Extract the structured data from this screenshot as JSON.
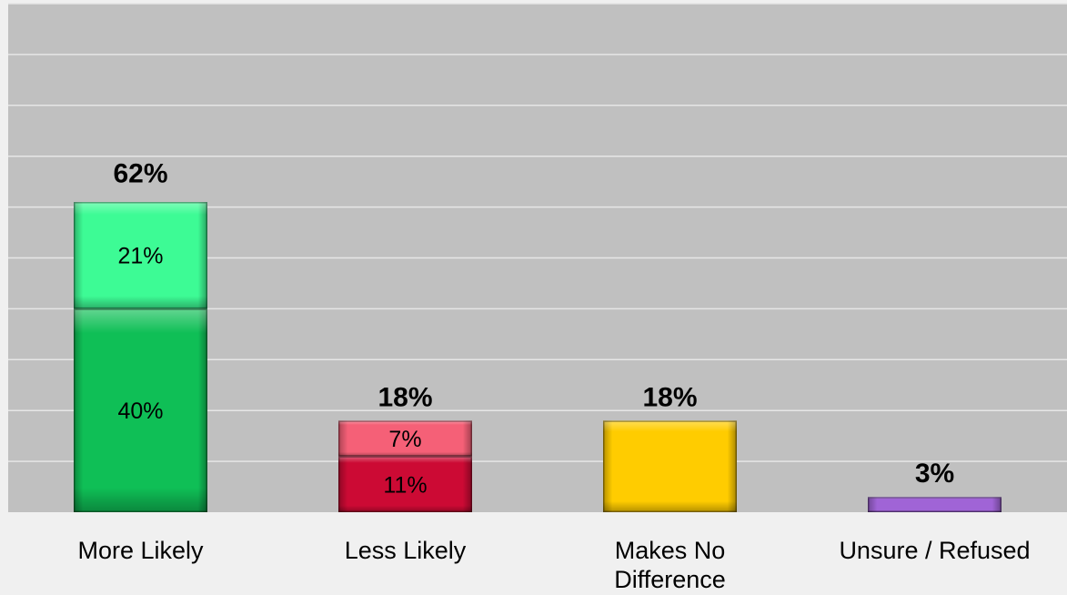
{
  "chart_data": {
    "type": "bar",
    "stacked": true,
    "categories": [
      "More Likely",
      "Less Likely",
      "Makes No Difference",
      "Unsure / Refused"
    ],
    "category_labels": [
      [
        "More Likely"
      ],
      [
        "Less Likely"
      ],
      [
        "Makes No",
        "Difference"
      ],
      [
        "Unsure / Refused"
      ]
    ],
    "totals": [
      62,
      18,
      18,
      3
    ],
    "total_labels": [
      "62%",
      "18%",
      "18%",
      "3%"
    ],
    "segments": [
      [
        {
          "value": 40,
          "label": "40%",
          "color": "#0fbf56"
        },
        {
          "value": 21,
          "label": "21%",
          "color": "#3dfb95"
        }
      ],
      [
        {
          "value": 11,
          "label": "11%",
          "color": "#cc0a34"
        },
        {
          "value": 7,
          "label": "7%",
          "color": "#f56077"
        }
      ],
      [
        {
          "value": 18,
          "label": "",
          "color": "#ffcc00"
        }
      ],
      [
        {
          "value": 3,
          "label": "",
          "color": "#a064d6"
        }
      ]
    ],
    "ylim": [
      0,
      100
    ],
    "grid": true,
    "legend": "none",
    "plot_background": "#c0c0c0",
    "gridline_color": "#e6e6e6"
  }
}
